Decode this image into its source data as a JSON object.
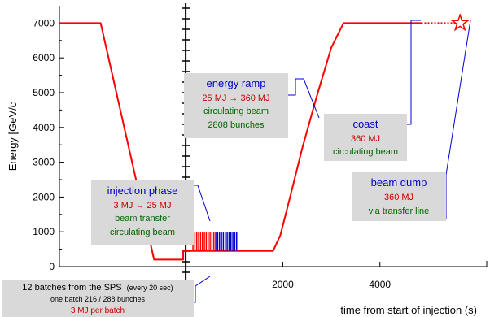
{
  "chart_data": {
    "type": "line",
    "title": "",
    "xlabel": "time from start of injection (s)",
    "ylabel": "Energy [GeV/c",
    "xlim": [
      -2600,
      6200
    ],
    "ylim": [
      0,
      7500
    ],
    "x_ticks": [
      2000,
      4000
    ],
    "y_ticks": [
      0,
      1000,
      2000,
      3000,
      4000,
      5000,
      6000,
      7000
    ],
    "grid": false,
    "series": [
      {
        "x": [
          -2600,
          -1750,
          -650,
          -650,
          -50,
          -50,
          1800,
          1950,
          2150,
          2400,
          2700,
          3000,
          3250,
          3400,
          4850
        ],
        "y": [
          7000,
          7000,
          200,
          200,
          200,
          450,
          450,
          900,
          2000,
          3400,
          4900,
          6300,
          7000,
          7000,
          7000
        ],
        "color": "#ff0000"
      },
      {
        "x": [
          4850,
          5600
        ],
        "y": [
          7000,
          7000
        ],
        "color": "#ff0000",
        "style": "dotted"
      }
    ],
    "injection_bars": {
      "x_start": 150,
      "x_end": 1050,
      "y_low": 450,
      "y_high": 980,
      "count": 24,
      "colors": [
        "#ff0000",
        "#0000cc"
      ]
    },
    "dump_marker": {
      "x": 5650,
      "y": 7000,
      "color": "#ff0000"
    },
    "annotations": [
      {
        "id": "energy-ramp",
        "lines": [
          {
            "text": "energy ramp",
            "color": "#0000cc"
          },
          {
            "text": "25 MJ → 360 MJ",
            "color": "#cc0000"
          },
          {
            "text": "circulating beam",
            "color": "#006600"
          },
          {
            "text": "2808 bunches",
            "color": "#006600"
          }
        ]
      },
      {
        "id": "injection-phase",
        "lines": [
          {
            "text": "injection phase",
            "color": "#0000cc"
          },
          {
            "text": "3 MJ → 25 MJ",
            "color": "#cc0000"
          },
          {
            "text": "beam transfer",
            "color": "#006600"
          },
          {
            "text": "circulating beam",
            "color": "#006600"
          }
        ]
      },
      {
        "id": "coast",
        "lines": [
          {
            "text": "coast",
            "color": "#0000cc"
          },
          {
            "text": "360 MJ",
            "color": "#cc0000"
          },
          {
            "text": "circulating beam",
            "color": "#006600"
          }
        ]
      },
      {
        "id": "beam-dump",
        "lines": [
          {
            "text": "beam dump",
            "color": "#0000cc"
          },
          {
            "text": "360 MJ",
            "color": "#cc0000"
          },
          {
            "text": "via transfer line",
            "color": "#006600"
          }
        ]
      },
      {
        "id": "sps-batches",
        "lines": [
          {
            "text": "12 batches from the SPS",
            "color": "#000000",
            "extra": "(every 20 sec)"
          },
          {
            "text": "one batch 216 / 288 bunches",
            "color": "#000000"
          },
          {
            "text": "3 MJ per batch",
            "color": "#cc0000"
          }
        ]
      }
    ]
  }
}
